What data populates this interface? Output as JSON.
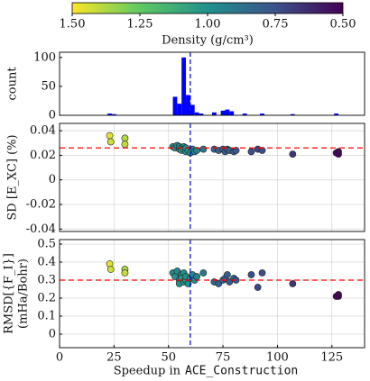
{
  "chart_data": [
    {
      "type": "histogram",
      "ylabel": "count",
      "color": "#0000ff",
      "bins": [
        20,
        22,
        24,
        26,
        28,
        30,
        32,
        34,
        36,
        38,
        40,
        42,
        44,
        46,
        48,
        50,
        52,
        54,
        56,
        58,
        60,
        62,
        64,
        66,
        68,
        70,
        72,
        74,
        76,
        78,
        80,
        82,
        84,
        86,
        88,
        90,
        92,
        94,
        96,
        98,
        100,
        102,
        104,
        106,
        108,
        110,
        112,
        114,
        116,
        118,
        120,
        122,
        124,
        126,
        128,
        130
      ],
      "values": [
        0,
        3,
        2,
        0,
        0,
        0,
        0,
        0,
        0,
        0,
        0,
        0,
        0,
        0,
        0,
        0,
        32,
        20,
        100,
        35,
        18,
        5,
        3,
        0,
        0,
        5,
        0,
        8,
        10,
        7,
        0,
        0,
        3,
        0,
        0,
        0,
        3,
        0,
        0,
        0,
        0,
        0,
        0,
        2,
        0,
        0,
        0,
        0,
        0,
        0,
        0,
        0,
        0,
        3,
        0
      ],
      "xlim": [
        0,
        140
      ],
      "ylim": [
        0,
        109
      ],
      "yticks": [
        0,
        50,
        100
      ],
      "vline": 60,
      "vline_color": "#0000cc"
    },
    {
      "type": "scatter",
      "ylabel": "SD [E_XC] (%)",
      "grid": true,
      "x": [
        23,
        23.5,
        30,
        30,
        52,
        53,
        54,
        55,
        55,
        56,
        56,
        57,
        57,
        58,
        58,
        59,
        60,
        61,
        62,
        63,
        66,
        71,
        73,
        75,
        76,
        77,
        78,
        80,
        81,
        88,
        91,
        93,
        107,
        127,
        128,
        128
      ],
      "values": [
        0.036,
        0.031,
        0.034,
        0.029,
        0.027,
        0.026,
        0.028,
        0.025,
        0.027,
        0.026,
        0.024,
        0.027,
        0.025,
        0.023,
        0.026,
        0.024,
        0.022,
        0.025,
        0.023,
        0.024,
        0.025,
        0.025,
        0.024,
        0.025,
        0.023,
        0.025,
        0.024,
        0.023,
        0.024,
        0.023,
        0.025,
        0.024,
        0.021,
        0.022,
        0.023,
        0.021
      ],
      "c": [
        1.46,
        1.43,
        1.38,
        1.41,
        0.98,
        1.0,
        0.96,
        1.02,
        1.0,
        0.97,
        1.03,
        0.99,
        1.0,
        1.01,
        0.98,
        1.0,
        0.97,
        0.95,
        0.96,
        0.94,
        0.9,
        0.82,
        0.8,
        0.81,
        0.79,
        0.8,
        0.78,
        0.8,
        0.77,
        0.74,
        0.72,
        0.73,
        0.66,
        0.53,
        0.52,
        0.51
      ],
      "xlim": [
        0,
        140
      ],
      "ylim": [
        -0.042,
        0.046
      ],
      "yticks": [
        -0.04,
        -0.02,
        0,
        0.02,
        0.04
      ],
      "xticks": [
        0,
        25,
        50,
        75,
        100,
        125
      ],
      "hline": 0.026,
      "hline_color": "#ff0000",
      "vline": 60,
      "vline_color": "#0000cc"
    },
    {
      "type": "scatter",
      "ylabel": [
        "RMSD[{F_I}]",
        "(mHa/Bohr)"
      ],
      "grid": true,
      "x": [
        23,
        23.5,
        30,
        30,
        52,
        53,
        54,
        55,
        55,
        56,
        56,
        57,
        57,
        58,
        58,
        59,
        60,
        61,
        62,
        63,
        66,
        71,
        73,
        75,
        76,
        77,
        78,
        80,
        81,
        88,
        91,
        93,
        107,
        127,
        128,
        128
      ],
      "values": [
        0.39,
        0.36,
        0.36,
        0.34,
        0.34,
        0.32,
        0.35,
        0.3,
        0.28,
        0.33,
        0.31,
        0.29,
        0.34,
        0.3,
        0.32,
        0.28,
        0.31,
        0.33,
        0.3,
        0.32,
        0.34,
        0.29,
        0.28,
        0.3,
        0.31,
        0.33,
        0.29,
        0.31,
        0.3,
        0.33,
        0.26,
        0.34,
        0.28,
        0.21,
        0.22,
        0.21
      ],
      "c": [
        1.46,
        1.43,
        1.38,
        1.41,
        0.98,
        1.0,
        0.96,
        1.02,
        1.0,
        0.97,
        1.03,
        0.99,
        1.0,
        1.01,
        0.98,
        1.0,
        0.97,
        0.95,
        0.96,
        0.94,
        0.9,
        0.82,
        0.8,
        0.81,
        0.79,
        0.8,
        0.78,
        0.8,
        0.77,
        0.74,
        0.72,
        0.73,
        0.66,
        0.53,
        0.52,
        0.51
      ],
      "xlim": [
        0,
        140
      ],
      "ylim": [
        -0.075,
        0.525
      ],
      "yticks": [
        0,
        0.1,
        0.2,
        0.3,
        0.4,
        0.5
      ],
      "xticks": [
        0,
        25,
        50,
        75,
        100,
        125
      ],
      "xlabel": [
        "Speedup in",
        "ACE_Construction"
      ],
      "hline": 0.3,
      "hline_color": "#ff0000",
      "vline": 60,
      "vline_color": "#0000cc"
    }
  ],
  "colorbar": {
    "label": "Density (g/cm³)",
    "colormap": "viridis",
    "lim": [
      1.5,
      0.5
    ],
    "ticks": [
      {
        "value": 1.5,
        "label": "1.50"
      },
      {
        "value": 1.25,
        "label": "1.25"
      },
      {
        "value": 1.0,
        "label": "1.00"
      },
      {
        "value": 0.75,
        "label": "0.75"
      },
      {
        "value": 0.5,
        "label": "0.50"
      }
    ]
  }
}
